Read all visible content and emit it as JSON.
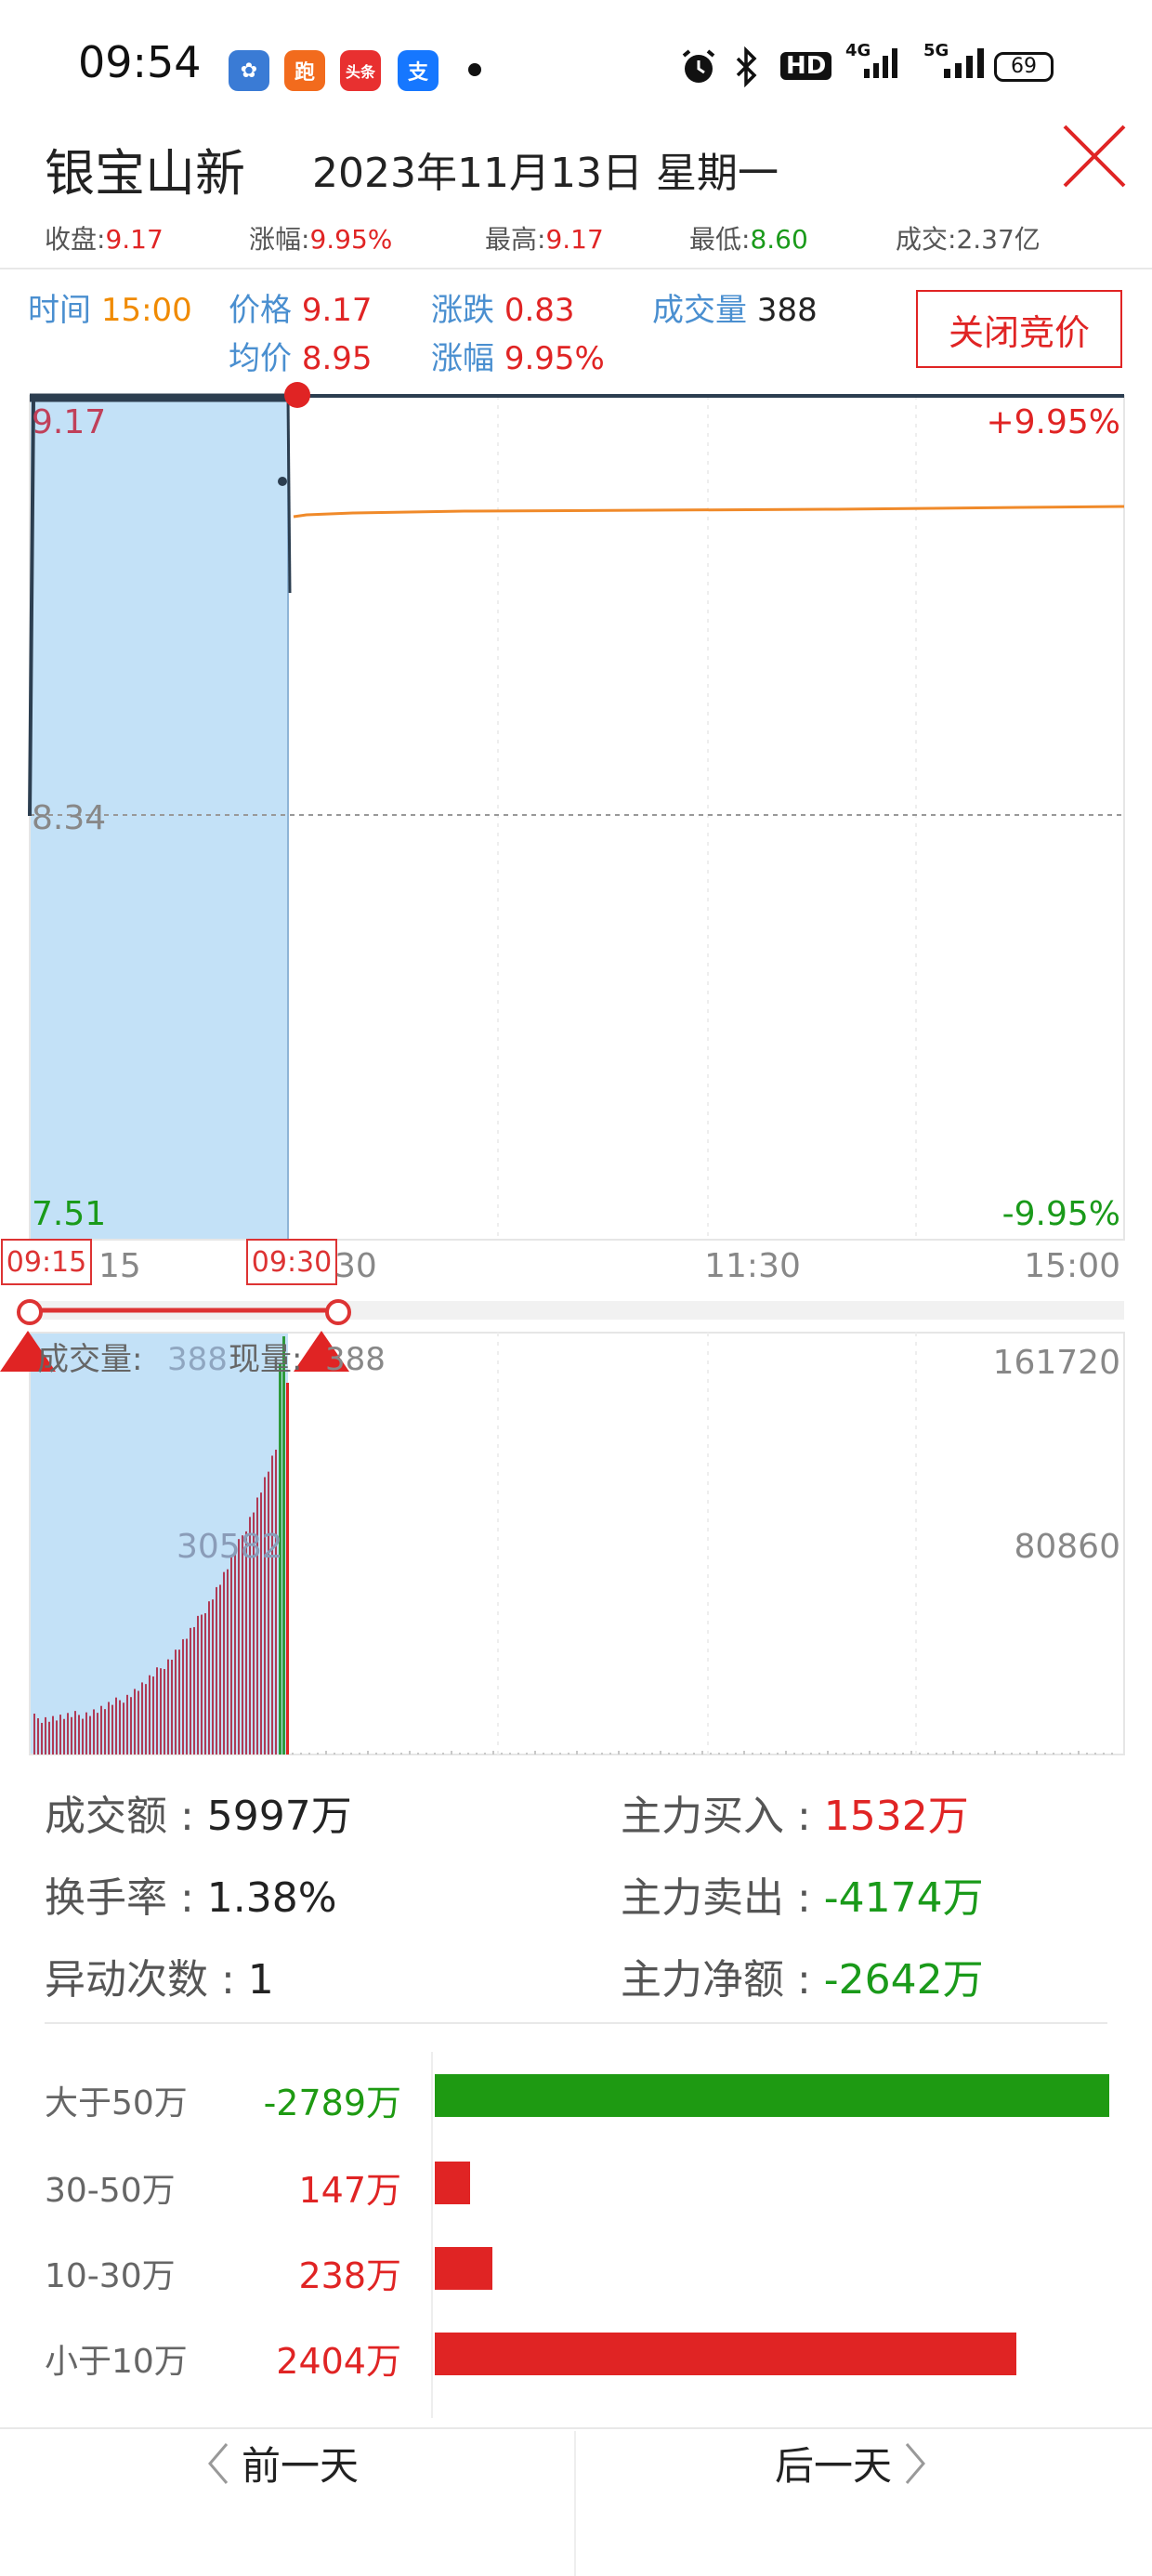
{
  "status_bar": {
    "time": "09:54",
    "apps": [
      {
        "icon": "huawei-cloud-icon",
        "color": "#3a7bd5",
        "label": "✿"
      },
      {
        "icon": "taobao-run-icon",
        "color": "#f26b1d",
        "label": "跑"
      },
      {
        "icon": "toutiao-icon",
        "color": "#e83030",
        "label": "头条"
      },
      {
        "icon": "alipay-icon",
        "color": "#1677ff",
        "label": "支"
      }
    ],
    "hd": "HD",
    "network1": "4G",
    "network2": "5G",
    "battery": "69"
  },
  "header": {
    "stock_name": "银宝山新",
    "date": "2023年11月13日  星期一"
  },
  "summary": [
    {
      "label": "收盘:",
      "value": "9.17",
      "color": "#e02424"
    },
    {
      "label": "涨幅:",
      "value": "9.95%",
      "color": "#e02424"
    },
    {
      "label": "最高:",
      "value": "9.17",
      "color": "#e02424"
    },
    {
      "label": "最低:",
      "value": "8.60",
      "color": "#1a9a1a"
    },
    {
      "label": "成交:",
      "value": "2.37亿",
      "color": "#555555"
    }
  ],
  "info": {
    "time_label": "时间",
    "time_value": "15:00",
    "price_label": "价格",
    "price_value": "9.17",
    "avg_label": "均价",
    "avg_value": "8.95",
    "change_label": "涨跌",
    "change_value": "0.83",
    "pct_label": "涨幅",
    "pct_value": "9.95%",
    "volume_label": "成交量",
    "volume_value": "388",
    "auction_button": "关闭竞价"
  },
  "price_axis": {
    "top": "9.17",
    "mid": "8.34",
    "bottom": "7.51",
    "top_pct": "+9.95%",
    "bottom_pct": "-9.95%"
  },
  "time_axis": [
    "15",
    "30",
    "11:30",
    "15:00"
  ],
  "auction_range": {
    "start": "09:15",
    "end": "09:30"
  },
  "volume_panel": {
    "label": "成交量:",
    "value": "388",
    "label2": "现量:",
    "value2": "388",
    "max": "161720",
    "mid": "80860",
    "auction_mark": "30582"
  },
  "stats": {
    "turnover_label": "成交额 : ",
    "turnover_value": "5997万",
    "rate_label": "换手率 : ",
    "rate_value": "1.38%",
    "abnormal_label": "异动次数 : ",
    "abnormal_value": "1",
    "main_buy_label": "主力买入 : ",
    "main_buy_value": "1532万",
    "main_sell_label": "主力卖出 : ",
    "main_sell_value": "-4174万",
    "main_net_label": "主力净额 : ",
    "main_net_value": "-2642万"
  },
  "flow": [
    {
      "label": "大于50万",
      "value": "-2789万",
      "amount": -2789,
      "color": "#1e9a12"
    },
    {
      "label": "30-50万",
      "value": "147万",
      "amount": 147,
      "color": "#e02424"
    },
    {
      "label": "10-30万",
      "value": "238万",
      "amount": 238,
      "color": "#e02424"
    },
    {
      "label": "小于10万",
      "value": "2404万",
      "amount": 2404,
      "color": "#e02424"
    }
  ],
  "footer": {
    "prev": "前一天",
    "next": "后一天"
  }
}
